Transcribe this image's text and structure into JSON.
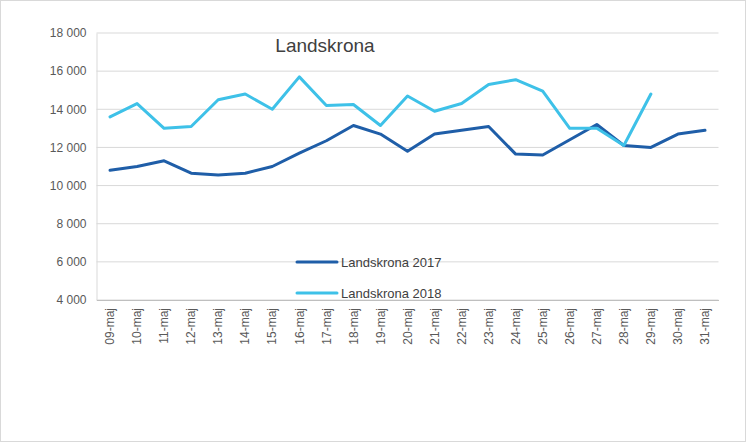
{
  "chart_data": {
    "type": "line",
    "title": "Landskrona",
    "categories": [
      "09-maj",
      "10-maj",
      "11-maj",
      "12-maj",
      "13-maj",
      "14-maj",
      "15-maj",
      "16-maj",
      "17-maj",
      "18-maj",
      "19-maj",
      "20-maj",
      "21-maj",
      "22-maj",
      "23-maj",
      "24-maj",
      "25-maj",
      "26-maj",
      "27-maj",
      "28-maj",
      "29-maj",
      "30-maj",
      "31-maj"
    ],
    "series": [
      {
        "name": "Landskrona 2017",
        "color": "#1f5ea8",
        "values": [
          10800,
          11000,
          11300,
          10650,
          10550,
          10650,
          11000,
          11700,
          12350,
          13150,
          12700,
          11800,
          12700,
          12900,
          13100,
          11650,
          11600,
          12400,
          13200,
          12100,
          12000,
          12700,
          12900
        ]
      },
      {
        "name": "Landskrona 2018",
        "color": "#3ec1e8",
        "values": [
          13600,
          14300,
          13000,
          13100,
          14500,
          14800,
          14000,
          15700,
          14200,
          14250,
          13150,
          14700,
          13900,
          14300,
          15300,
          15550,
          14950,
          13000,
          13000,
          12100,
          14800,
          null,
          null
        ]
      }
    ],
    "ylim": [
      4000,
      18000
    ],
    "yticks": [
      {
        "value": 4000,
        "label": "4 000"
      },
      {
        "value": 6000,
        "label": "6 000"
      },
      {
        "value": 8000,
        "label": "8 000"
      },
      {
        "value": 10000,
        "label": "10 000"
      },
      {
        "value": 12000,
        "label": "12 000"
      },
      {
        "value": 14000,
        "label": "14 000"
      },
      {
        "value": 16000,
        "label": "16 000"
      },
      {
        "value": 18000,
        "label": "18 000"
      }
    ],
    "grid": true,
    "legend": "center"
  }
}
